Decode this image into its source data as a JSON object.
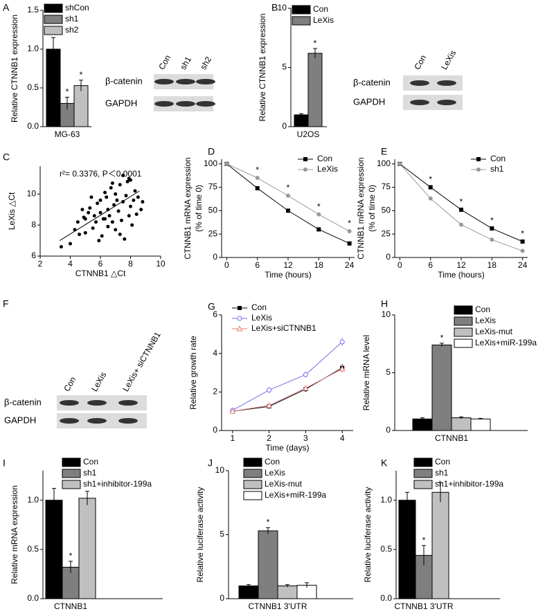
{
  "chart_data": [
    {
      "panel": "A",
      "type": "bar",
      "ylabel": "Relative CTNNB1 expression",
      "categories": [
        "MG-63"
      ],
      "ylim": [
        0,
        1.5
      ],
      "yticks": [
        {
          "value": 0,
          "label": "0.0"
        },
        {
          "value": 0.5,
          "label": "0.5"
        },
        {
          "value": 1,
          "label": "1.0"
        },
        {
          "value": 1.5,
          "label": "1.5"
        }
      ],
      "series": [
        {
          "name": "shCon",
          "color": "#000000",
          "values": [
            1.0
          ],
          "errors": [
            0.15
          ]
        },
        {
          "name": "sh1",
          "color": "#7f7f7f",
          "values": [
            0.3
          ],
          "errors": [
            0.08
          ],
          "mark": "*"
        },
        {
          "name": "sh2",
          "color": "#c0c0c0",
          "values": [
            0.53
          ],
          "errors": [
            0.07
          ],
          "mark": "*"
        }
      ]
    },
    {
      "panel": "B",
      "type": "bar",
      "ylabel": "Relative CTNNB1 expression",
      "categories": [
        "U2OS"
      ],
      "ylim": [
        0,
        10
      ],
      "yticks": [
        0,
        5,
        10
      ],
      "series": [
        {
          "name": "Con",
          "color": "#000000",
          "values": [
            1.0
          ],
          "errors": [
            0.1
          ]
        },
        {
          "name": "LeXis",
          "color": "#7f7f7f",
          "values": [
            6.2
          ],
          "errors": [
            0.4
          ],
          "mark": "*"
        }
      ]
    },
    {
      "panel": "C",
      "type": "scatter",
      "ylabel": "LeXis △Ct",
      "xlabel": "CTNNB1 △Ct",
      "annotation": "r²= 0.3376, P＜0.0001",
      "xlim": [
        2,
        10
      ],
      "xticks": [
        2,
        4,
        6,
        8,
        10
      ],
      "ylim": [
        6,
        11.8
      ],
      "yticks": [
        6,
        8,
        10
      ],
      "color": "#000000",
      "x": [
        3.4,
        4.0,
        4.3,
        4.5,
        4.6,
        4.8,
        5.0,
        5.0,
        5.2,
        5.3,
        5.5,
        5.6,
        5.7,
        5.8,
        5.9,
        6.0,
        6.0,
        6.1,
        6.2,
        6.3,
        6.4,
        6.5,
        6.5,
        6.6,
        6.7,
        6.8,
        6.9,
        7.0,
        7.0,
        7.1,
        7.2,
        7.3,
        7.4,
        7.5,
        7.5,
        7.6,
        7.7,
        7.8,
        7.9,
        8.0,
        8.0,
        8.1,
        8.2,
        8.3,
        8.4,
        8.5,
        8.7,
        8.8,
        5.4,
        6.8,
        7.3,
        7.9,
        6.3,
        4.9
      ],
      "values": [
        6.6,
        6.8,
        7.7,
        8.2,
        7.4,
        9.0,
        8.4,
        7.5,
        8.8,
        9.1,
        7.8,
        8.6,
        8.2,
        9.4,
        7.0,
        8.8,
        9.6,
        7.3,
        8.4,
        10.1,
        9.8,
        7.9,
        9.0,
        8.6,
        10.4,
        8.2,
        9.3,
        10.0,
        7.7,
        9.6,
        8.9,
        10.6,
        8.3,
        9.5,
        11.2,
        7.1,
        9.9,
        10.8,
        8.6,
        9.2,
        10.9,
        8.0,
        9.6,
        10.2,
        8.7,
        9.8,
        9.0,
        9.5,
        9.8,
        10.7,
        7.4,
        11.0,
        8.4,
        8.5
      ],
      "fit": {
        "x": [
          3.3,
          8.6
        ],
        "values": [
          7.0,
          10.2
        ]
      }
    },
    {
      "panel": "D",
      "type": "line",
      "ylabel": [
        "CTNNB1 mRNA expression",
        "(% of time 0)"
      ],
      "xlabel": "Time (hours)",
      "x": [
        0,
        6,
        12,
        18,
        24
      ],
      "xlim": [
        -1,
        25
      ],
      "xticks": [
        0,
        6,
        12,
        18,
        24
      ],
      "ylim": [
        0,
        105
      ],
      "yticks": [
        0,
        25,
        50,
        75,
        100
      ],
      "significant": [
        null,
        "*",
        "*",
        "*",
        "*"
      ],
      "series": [
        {
          "name": "Con",
          "color": "#000000",
          "marker": "square",
          "values": [
            100,
            74,
            50,
            30,
            15
          ],
          "errors": [
            0,
            2,
            2,
            2,
            2
          ]
        },
        {
          "name": "LeXis",
          "color": "#999999",
          "marker": "circle",
          "values": [
            100,
            85,
            66,
            46,
            28
          ],
          "errors": [
            0,
            2,
            2,
            2,
            2
          ]
        }
      ]
    },
    {
      "panel": "E",
      "type": "line",
      "ylabel": [
        "CTNNB1 mRNA expression",
        "(% of time 0)"
      ],
      "xlabel": "Time (hours)",
      "x": [
        0,
        6,
        12,
        18,
        24
      ],
      "xlim": [
        -1,
        25
      ],
      "xticks": [
        0,
        6,
        12,
        18,
        24
      ],
      "ylim": [
        0,
        105
      ],
      "yticks": [
        0,
        25,
        50,
        75,
        100
      ],
      "significant": [
        null,
        "*",
        "*",
        "*",
        "*"
      ],
      "series": [
        {
          "name": "Con",
          "color": "#000000",
          "marker": "square",
          "values": [
            100,
            75,
            51,
            31,
            17
          ],
          "errors": [
            0,
            2,
            2,
            2,
            2
          ]
        },
        {
          "name": "sh1",
          "color": "#999999",
          "marker": "circle",
          "values": [
            100,
            63,
            35,
            19,
            7
          ],
          "errors": [
            0,
            2,
            2,
            2,
            2
          ]
        }
      ]
    },
    {
      "panel": "G",
      "type": "line",
      "ylabel": "Relative growth rate",
      "xlabel": "Time (days)",
      "x": [
        1,
        2,
        3,
        4
      ],
      "xlim": [
        0.7,
        4.3
      ],
      "xticks": [
        1,
        2,
        3,
        4
      ],
      "ylim": [
        0,
        6
      ],
      "yticks": [
        0,
        2,
        4,
        6
      ],
      "series": [
        {
          "name": "Con",
          "color": "#000000",
          "marker": "square",
          "values": [
            1.0,
            1.25,
            2.15,
            3.25
          ],
          "errors": [
            0.1,
            0.1,
            0.15,
            0.2
          ]
        },
        {
          "name": "LeXis",
          "color": "#6f6fe8",
          "marker": "open-circle",
          "values": [
            1.05,
            2.1,
            2.9,
            4.6
          ],
          "errors": [
            0.1,
            0.15,
            0.15,
            0.2
          ]
        },
        {
          "name": "LeXis+siCTNNB1",
          "color": "#e07b7b",
          "marker": "open-triangle",
          "values": [
            1.0,
            1.3,
            2.2,
            3.2
          ],
          "errors": [
            0.1,
            0.15,
            0.15,
            0.2
          ]
        }
      ]
    },
    {
      "panel": "H",
      "type": "bar",
      "ylabel": "Relative mRNA level",
      "categories": [
        "CTNNB1"
      ],
      "ylim": [
        0,
        10
      ],
      "yticks": [
        0,
        5,
        10
      ],
      "series": [
        {
          "name": "Con",
          "color": "#000000",
          "values": [
            1.0
          ],
          "errors": [
            0.1
          ]
        },
        {
          "name": "LeXis",
          "color": "#7f7f7f",
          "values": [
            7.4
          ],
          "errors": [
            0.15
          ],
          "mark": "*"
        },
        {
          "name": "LeXis-mut",
          "color": "#c0c0c0",
          "values": [
            1.1
          ],
          "errors": [
            0.08
          ]
        },
        {
          "name": "LeXis+miR-199a",
          "color": "#ffffff",
          "values": [
            1.0
          ],
          "errors": [
            0.05
          ]
        }
      ]
    },
    {
      "panel": "I",
      "type": "bar",
      "ylabel": "Relative mRNA expression",
      "categories": [
        "CTNNB1"
      ],
      "ylim": [
        0,
        1.3
      ],
      "yticks": [
        {
          "value": 0,
          "label": "0.0"
        },
        {
          "value": 0.5,
          "label": "0.5"
        },
        {
          "value": 1,
          "label": "1.0"
        }
      ],
      "series": [
        {
          "name": "Con",
          "color": "#000000",
          "values": [
            1.0
          ],
          "errors": [
            0.12
          ]
        },
        {
          "name": "sh1",
          "color": "#7f7f7f",
          "values": [
            0.32
          ],
          "errors": [
            0.06
          ],
          "mark": "*"
        },
        {
          "name": "sh1+inhibitor-199a",
          "color": "#c0c0c0",
          "values": [
            1.02
          ],
          "errors": [
            0.07
          ]
        }
      ]
    },
    {
      "panel": "J",
      "type": "bar",
      "ylabel": "Relative luciferase activity",
      "categories": [
        "CTNNB1 3'UTR"
      ],
      "ylim": [
        0,
        10
      ],
      "yticks": [
        0,
        5,
        10
      ],
      "series": [
        {
          "name": "Con",
          "color": "#000000",
          "values": [
            1.0
          ],
          "errors": [
            0.1
          ]
        },
        {
          "name": "LeXis",
          "color": "#7f7f7f",
          "values": [
            5.3
          ],
          "errors": [
            0.25
          ],
          "mark": "*"
        },
        {
          "name": "LeXis-mut",
          "color": "#c0c0c0",
          "values": [
            1.0
          ],
          "errors": [
            0.1
          ]
        },
        {
          "name": "LeXis+miR-199a",
          "color": "#ffffff",
          "values": [
            1.05
          ],
          "errors": [
            0.2
          ]
        }
      ]
    },
    {
      "panel": "K",
      "type": "bar",
      "ylabel": "Relative luciferase activity",
      "categories": [
        "CTNNB1 3'UTR"
      ],
      "ylim": [
        0,
        1.3
      ],
      "yticks": [
        {
          "value": 0,
          "label": "0.0"
        },
        {
          "value": 0.5,
          "label": "0.5"
        },
        {
          "value": 1,
          "label": "1.0"
        }
      ],
      "series": [
        {
          "name": "Con",
          "color": "#000000",
          "values": [
            1.0
          ],
          "errors": [
            0.08
          ]
        },
        {
          "name": "sh1",
          "color": "#7f7f7f",
          "values": [
            0.44
          ],
          "errors": [
            0.1
          ],
          "mark": "*"
        },
        {
          "name": "sh1+inhibitor-199a",
          "color": "#c0c0c0",
          "values": [
            1.08
          ],
          "errors": [
            0.1
          ]
        }
      ]
    }
  ],
  "blots": [
    {
      "lanes": [
        "Con",
        "sh1",
        "sh2"
      ],
      "rows": [
        "β-catenin",
        "GAPDH"
      ]
    },
    {
      "lanes": [
        "Con",
        "LeXis"
      ],
      "rows": [
        "β-catenin",
        "GAPDH"
      ]
    },
    {
      "panel": "F",
      "lanes": [
        "Con",
        "LeXis",
        "LeXis+ siCTNNB1"
      ],
      "rows": [
        "β-catenin",
        "GAPDH"
      ]
    }
  ]
}
